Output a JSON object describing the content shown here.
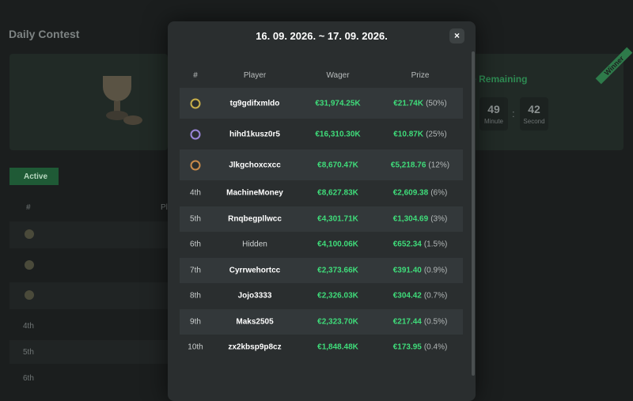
{
  "background": {
    "title": "Daily Contest",
    "time_remaining": "Time Remaining",
    "winner": "Winner",
    "countdown": [
      {
        "value": "49",
        "unit": "Minute"
      },
      {
        "value": "42",
        "unit": "Second"
      }
    ],
    "status": "Active",
    "table_header": [
      "#",
      "Player"
    ],
    "ranks": [
      "4th",
      "5th",
      "6th"
    ]
  },
  "modal": {
    "title": "16. 09. 2026. ~ 17. 09. 2026.",
    "close": "×",
    "columns": [
      "#",
      "Player",
      "Wager",
      "Prize"
    ],
    "rows": [
      {
        "player": "tg9gdifxmldo",
        "wager": "€31,974.25K",
        "prize": "€21.74K",
        "share": "(50%)"
      },
      {
        "player": "hihd1kusz0r5",
        "wager": "€16,310.30K",
        "prize": "€10.87K",
        "share": "(25%)"
      },
      {
        "player": "Jlkgchoxcxcc",
        "wager": "€8,670.47K",
        "prize": "€5,218.76",
        "share": "(12%)"
      },
      {
        "rank": "4th",
        "player": "MachineMoney",
        "wager": "€8,627.83K",
        "prize": "€2,609.38",
        "share": "(6%)"
      },
      {
        "rank": "5th",
        "player": "Rnqbegpllwcc",
        "wager": "€4,301.71K",
        "prize": "€1,304.69",
        "share": "(3%)"
      },
      {
        "rank": "6th",
        "player": "Hidden",
        "wager": "€4,100.06K",
        "prize": "€652.34",
        "share": "(1.5%)"
      },
      {
        "rank": "7th",
        "player": "Cyrrwehortcc",
        "wager": "€2,373.66K",
        "prize": "€391.40",
        "share": "(0.9%)"
      },
      {
        "rank": "8th",
        "player": "Jojo3333",
        "wager": "€2,326.03K",
        "prize": "€304.42",
        "share": "(0.7%)"
      },
      {
        "rank": "9th",
        "player": "Maks2505",
        "wager": "€2,323.70K",
        "prize": "€217.44",
        "share": "(0.5%)"
      },
      {
        "rank": "10th",
        "player": "zx2kbsp9p8cz",
        "wager": "€1,848.48K",
        "prize": "€173.95",
        "share": "(0.4%)"
      }
    ]
  }
}
